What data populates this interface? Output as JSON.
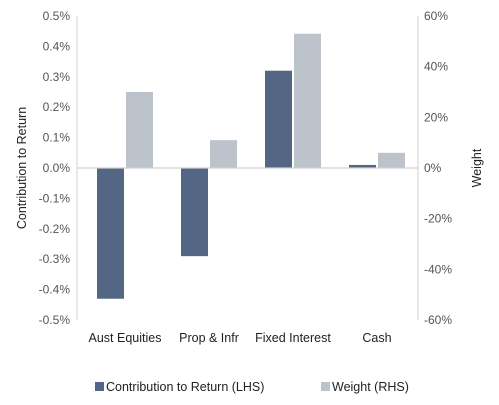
{
  "chart_data": {
    "type": "bar",
    "categories": [
      "Aust Equities",
      "Prop & Infr",
      "Fixed Interest",
      "Cash"
    ],
    "series": [
      {
        "name": "Contribution to Return (LHS)",
        "axis": "left",
        "unit": "%",
        "values": [
          -0.43,
          -0.29,
          0.32,
          0.01
        ],
        "color": "#536684"
      },
      {
        "name": "Weight (RHS)",
        "axis": "right",
        "unit": "%",
        "values": [
          30,
          11,
          53,
          6
        ],
        "color": "#bdc3cb"
      }
    ],
    "ylabel": "Contribution to Return",
    "y2label": "Weight",
    "ylim": [
      -0.5,
      0.5
    ],
    "y2lim": [
      -60,
      60
    ],
    "yticks": [
      "0.5%",
      "0.4%",
      "0.3%",
      "0.2%",
      "0.1%",
      "0.0%",
      "-0.1%",
      "-0.2%",
      "-0.3%",
      "-0.4%",
      "-0.5%"
    ],
    "y2ticks": [
      "60%",
      "40%",
      "20%",
      "0%",
      "-20%",
      "-40%",
      "-60%"
    ],
    "legend_position": "bottom",
    "grid": false
  }
}
